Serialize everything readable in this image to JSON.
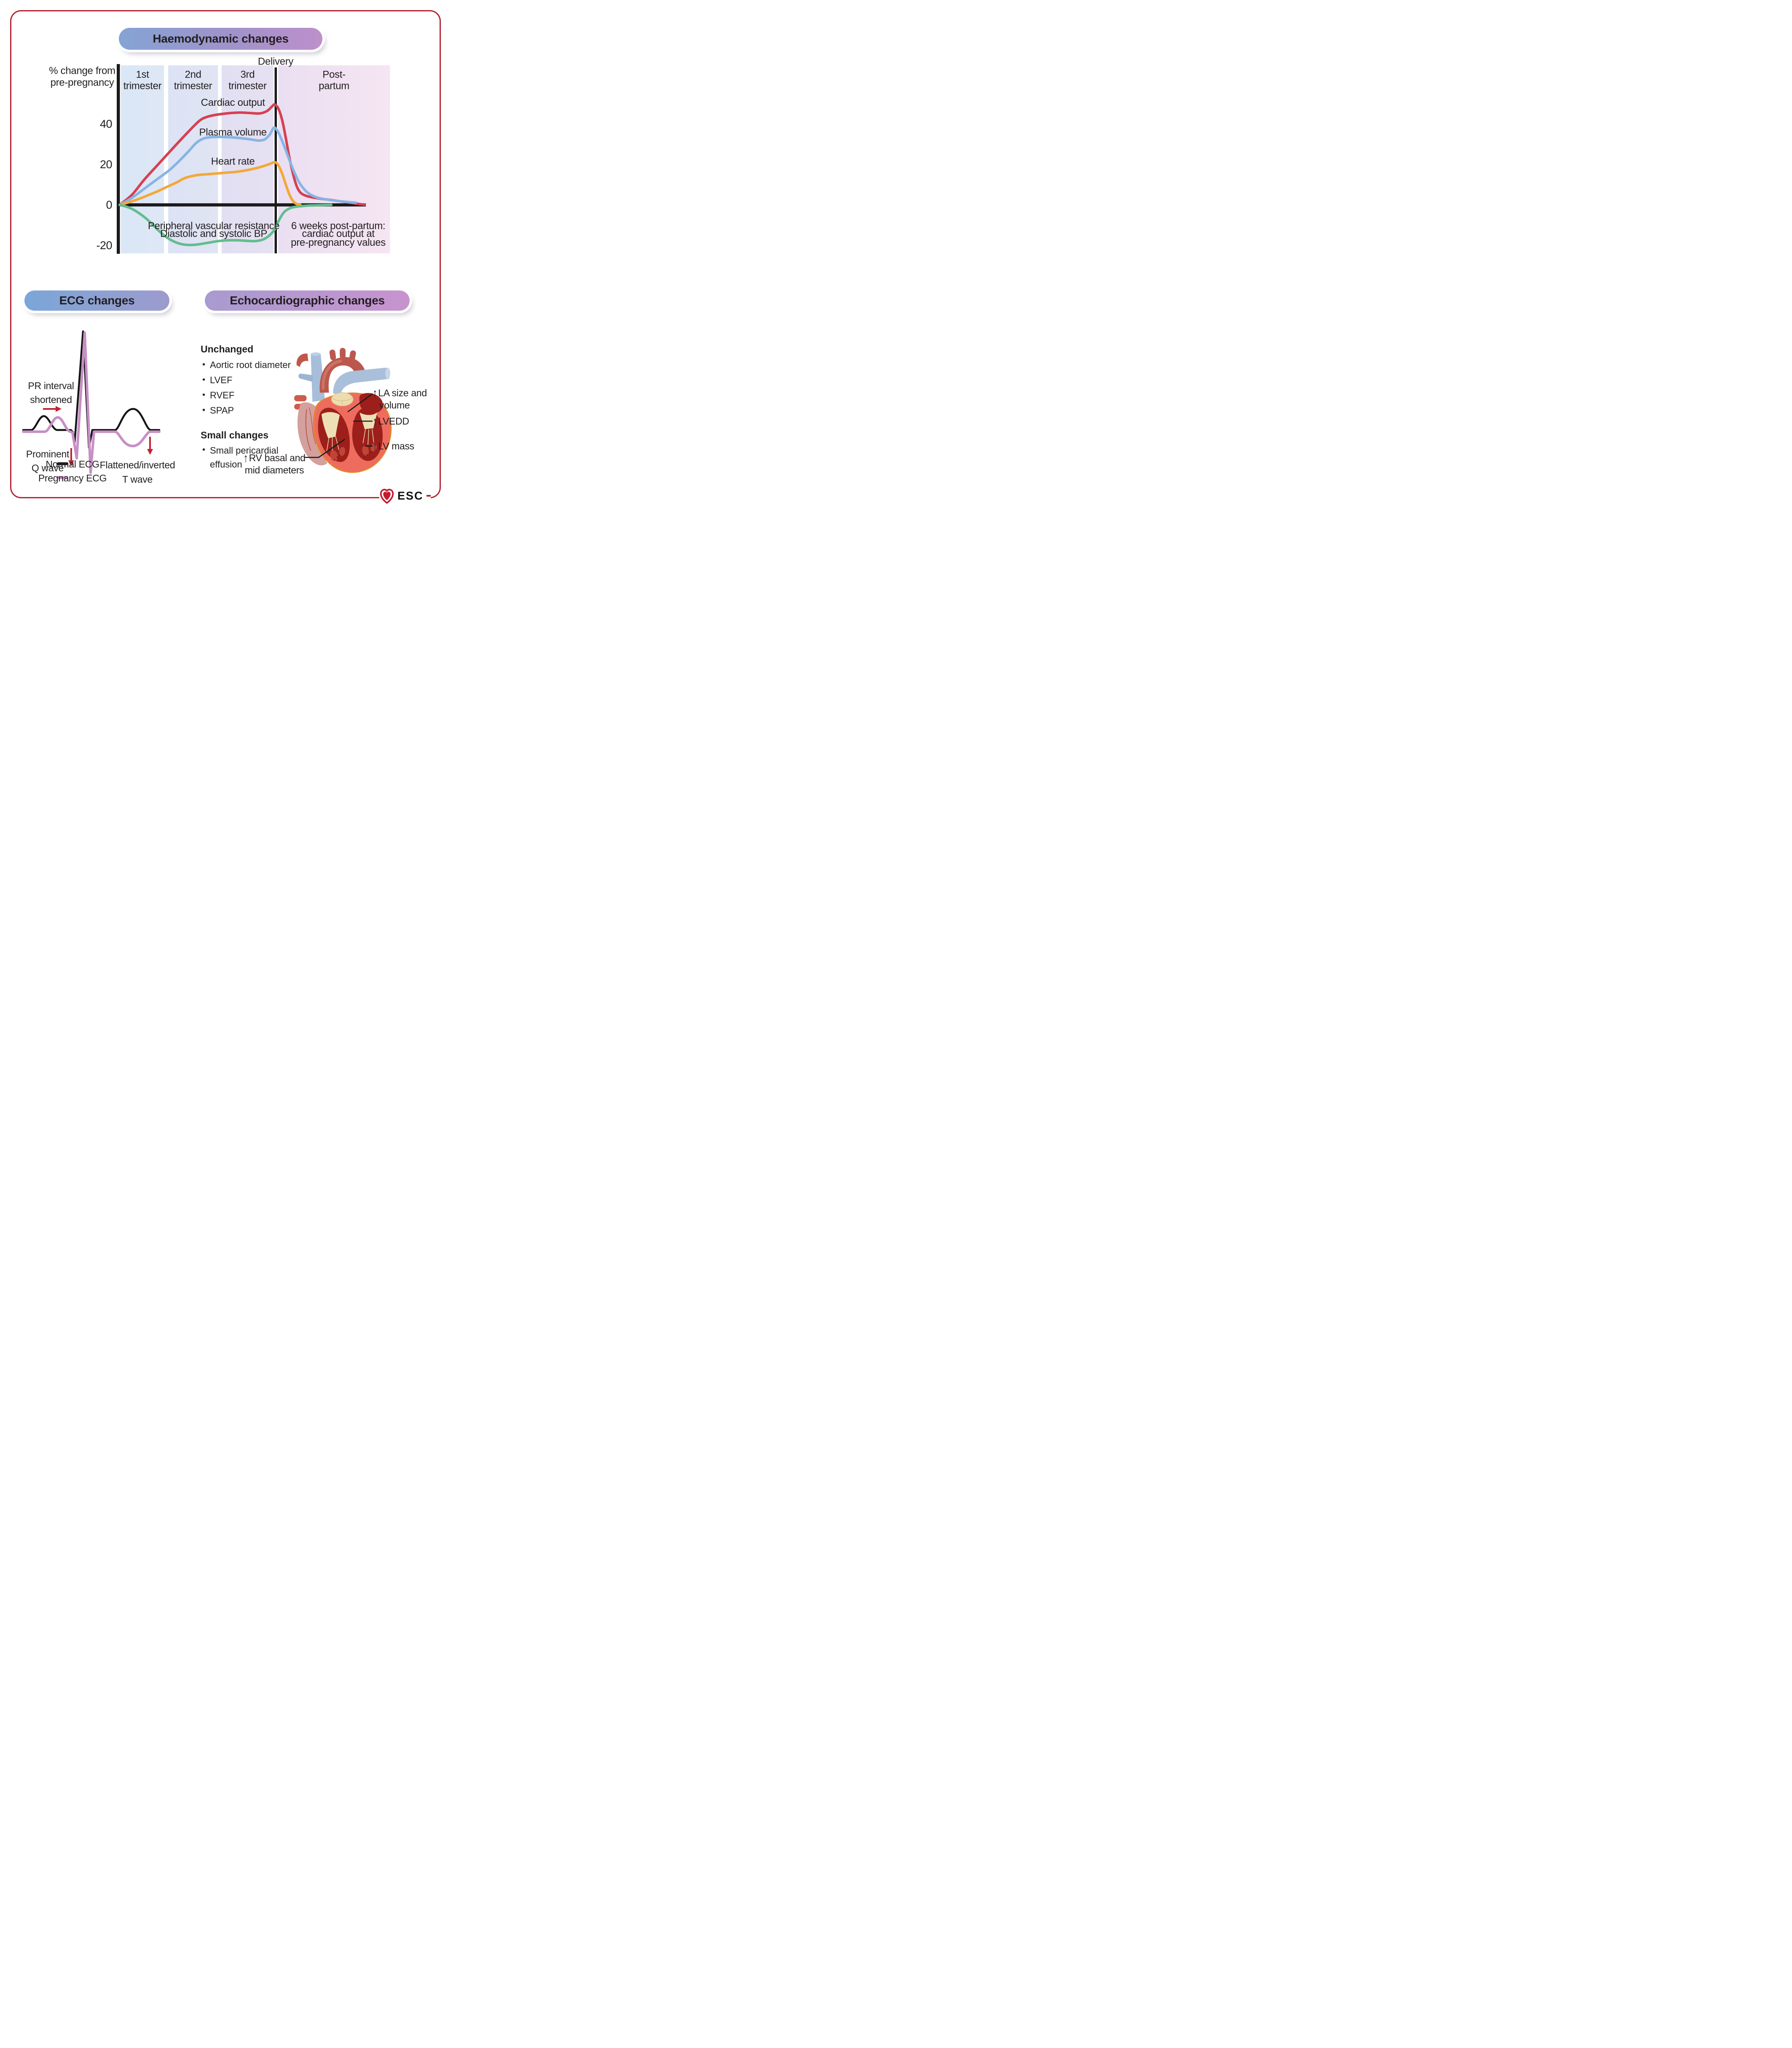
{
  "colors": {
    "border_red": "#b42332",
    "pill_haemo_gradient": [
      "#84a4d4",
      "#bd90cb"
    ],
    "pill_ecg_gradient": [
      "#7ba6d8",
      "#9d9bce"
    ],
    "pill_echo_gradient": [
      "#a89bd0",
      "#c893cf"
    ],
    "cardiac_output": "#d64053",
    "plasma_volume": "#88b4e2",
    "heart_rate": "#f3a83b",
    "peripheral_vascular_resistance": "#63bd8e",
    "normal_ecg": "#1a1a1a",
    "pregnancy_ecg": "#c78fc4",
    "annotation_arrow_red": "#bf2332"
  },
  "panels": {
    "haemodynamic": {
      "title": "Haemodynamic changes"
    },
    "ecg": {
      "title": "ECG changes"
    },
    "echo": {
      "title": "Echocardiographic changes"
    }
  },
  "chart_data": {
    "type": "line",
    "title": "Haemodynamic changes",
    "ylabel": "% change from pre-pregnancy",
    "ylabel_lines": [
      "% change from",
      "pre-pregnancy"
    ],
    "yticks": [
      40,
      20,
      0,
      -20
    ],
    "ylim": [
      -25,
      72
    ],
    "xlim": [
      0,
      100
    ],
    "grid": false,
    "delivery_x": 63.4,
    "delivery_label": "Delivery",
    "sections": [
      {
        "label_lines": [
          "1st",
          "trimester"
        ],
        "x0": 0.5,
        "x1": 18.0,
        "color1": "#d9e7f6",
        "color2": "#dfe7f5"
      },
      {
        "label_lines": [
          "2nd",
          "trimester"
        ],
        "x0": 19.7,
        "x1": 39.9,
        "color1": "#dce3f4",
        "color2": "#e0e4f3"
      },
      {
        "label_lines": [
          "3rd",
          "trimester"
        ],
        "x0": 41.4,
        "x1": 62.5,
        "color1": "#e1dff2",
        "color2": "#e6e1f2"
      },
      {
        "label_lines": [
          "Post-",
          "partum"
        ],
        "x0": 64.4,
        "x1": 109.8,
        "color1": "#eadff2",
        "color2": "#f6e5f2"
      }
    ],
    "series": [
      {
        "id": "cardiac-output",
        "name": "Cardiac output",
        "color": "#d64053",
        "label_pos": {
          "x": 46,
          "y": 50.5
        },
        "points": [
          [
            0,
            0
          ],
          [
            5,
            5
          ],
          [
            10,
            12.5
          ],
          [
            16,
            20.5
          ],
          [
            22,
            28.5
          ],
          [
            27,
            35
          ],
          [
            31,
            40
          ],
          [
            33.5,
            42.5
          ],
          [
            37,
            44
          ],
          [
            42,
            45
          ],
          [
            48,
            45.6
          ],
          [
            53,
            45.4
          ],
          [
            57,
            45.2
          ],
          [
            60,
            46.5
          ],
          [
            62,
            48.8
          ],
          [
            63,
            49.6
          ],
          [
            64.5,
            47.5
          ],
          [
            66,
            42
          ],
          [
            67.5,
            33
          ],
          [
            69,
            23
          ],
          [
            70.5,
            15
          ],
          [
            72,
            9
          ],
          [
            73.5,
            6
          ],
          [
            75.5,
            4.6
          ],
          [
            78,
            3.8
          ],
          [
            82,
            3
          ],
          [
            86,
            2.4
          ],
          [
            90,
            1.7
          ],
          [
            94,
            1
          ],
          [
            97.5,
            0.4
          ],
          [
            99.5,
            0.1
          ]
        ]
      },
      {
        "id": "plasma-volume",
        "name": "Plasma volume",
        "color": "#88b4e2",
        "label_pos": {
          "x": 46,
          "y": 35.8
        },
        "points": [
          [
            0,
            0
          ],
          [
            5,
            3.5
          ],
          [
            10,
            8
          ],
          [
            15,
            12.5
          ],
          [
            20,
            17
          ],
          [
            24,
            21.5
          ],
          [
            28,
            26.5
          ],
          [
            31,
            30.5
          ],
          [
            33.5,
            32.5
          ],
          [
            36,
            33.3
          ],
          [
            40,
            33.6
          ],
          [
            45,
            33.4
          ],
          [
            49,
            33
          ],
          [
            53,
            32.4
          ],
          [
            56.5,
            31.8
          ],
          [
            59,
            32.4
          ],
          [
            61,
            34.8
          ],
          [
            62.5,
            38
          ],
          [
            63.5,
            37.6
          ],
          [
            65,
            34.5
          ],
          [
            67,
            28.5
          ],
          [
            69,
            22
          ],
          [
            71,
            16
          ],
          [
            73,
            11
          ],
          [
            75.5,
            7
          ],
          [
            78,
            4.8
          ],
          [
            81,
            3.4
          ],
          [
            85,
            2.5
          ],
          [
            89,
            1.9
          ],
          [
            93,
            1.4
          ],
          [
            96,
            1.1
          ]
        ]
      },
      {
        "id": "heart-rate",
        "name": "Heart rate",
        "color": "#f3a83b",
        "label_pos": {
          "x": 46,
          "y": 21.5
        },
        "points": [
          [
            0,
            0
          ],
          [
            5,
            1.8
          ],
          [
            10,
            4
          ],
          [
            15,
            6.5
          ],
          [
            19,
            8.8
          ],
          [
            23,
            11
          ],
          [
            26,
            13
          ],
          [
            28.5,
            14
          ],
          [
            32,
            14.8
          ],
          [
            37,
            15.3
          ],
          [
            42,
            15.8
          ],
          [
            47,
            16.3
          ],
          [
            51,
            17
          ],
          [
            55,
            18
          ],
          [
            58,
            19
          ],
          [
            60.5,
            20
          ],
          [
            62.3,
            20.9
          ],
          [
            63.3,
            21
          ],
          [
            64.5,
            19.5
          ],
          [
            66,
            15.5
          ],
          [
            67.5,
            10
          ],
          [
            69,
            5
          ],
          [
            70.5,
            1.8
          ],
          [
            72,
            0.4
          ],
          [
            73.5,
            0.05
          ]
        ]
      },
      {
        "id": "peripheral-vascular-resistance",
        "name": "Peripheral vascular resistance / Diastolic and systolic BP",
        "color": "#63bd8e",
        "label_pos": null,
        "points": [
          [
            0,
            0
          ],
          [
            2.5,
            -0.8
          ],
          [
            5,
            -2
          ],
          [
            8,
            -4.2
          ],
          [
            11,
            -7
          ],
          [
            14,
            -10.5
          ],
          [
            17,
            -14
          ],
          [
            20,
            -16.8
          ],
          [
            23,
            -18.6
          ],
          [
            26,
            -19.6
          ],
          [
            29,
            -19.8
          ],
          [
            32,
            -19.5
          ],
          [
            36,
            -18.7
          ],
          [
            40,
            -17.9
          ],
          [
            44,
            -17.5
          ],
          [
            48,
            -17.5
          ],
          [
            52,
            -17.8
          ],
          [
            55,
            -17.9
          ],
          [
            57.5,
            -17.4
          ],
          [
            59.5,
            -16.3
          ],
          [
            61.5,
            -14.3
          ],
          [
            63,
            -12
          ],
          [
            64,
            -9.5
          ],
          [
            65.2,
            -6.5
          ],
          [
            66.5,
            -4
          ],
          [
            68,
            -2.4
          ],
          [
            70,
            -1.3
          ],
          [
            72.5,
            -0.8
          ],
          [
            76,
            -0.4
          ],
          [
            80,
            -0.2
          ],
          [
            84,
            -0.05
          ],
          [
            86,
            0
          ]
        ]
      }
    ],
    "annotations": [
      {
        "id": "pvr-note",
        "x": 38.2,
        "lines": [
          "Peripheral vascular resistance",
          "Diastolic and systolic BP"
        ],
        "ys": [
          -10.4,
          -14.3
        ]
      },
      {
        "id": "postpartum-note",
        "x": 88.8,
        "lines": [
          "6 weeks post-partum:",
          "cardiac output at",
          "pre-pregnancy values"
        ],
        "ys": [
          -10.4,
          -14.3,
          -18.6
        ]
      }
    ]
  },
  "ecg": {
    "title": "ECG changes",
    "annotations": {
      "pr": {
        "line1": "PR interval",
        "line2": "shortened"
      },
      "q": {
        "line1": "Prominent",
        "line2": "Q wave"
      },
      "t": {
        "line1": "Flattened/inverted",
        "line2": "T wave"
      }
    },
    "legend": [
      {
        "label": "Normal ECG",
        "color": "#1a1a1a"
      },
      {
        "label": "Pregnancy ECG",
        "color": "#c78fc4"
      }
    ]
  },
  "echo": {
    "title": "Echocardiographic changes",
    "unchanged": {
      "heading": "Unchanged",
      "items": [
        "Aortic root diameter",
        "LVEF",
        "RVEF",
        "SPAP"
      ]
    },
    "small_changes": {
      "heading": "Small changes",
      "items": [
        "Small pericardial effusion"
      ]
    },
    "heart_annotations": {
      "la": {
        "arrow": "↑",
        "line1": "LA size and",
        "line2": "volume"
      },
      "lvedd": {
        "arrow": "↑",
        "label": "LVEDD"
      },
      "lv_mass": {
        "arrow": "↑",
        "label": "LV mass"
      },
      "rv": {
        "arrow": "↑",
        "line1": "RV basal and",
        "line2": "mid diameters"
      }
    }
  },
  "logo": {
    "text": "ESC"
  }
}
